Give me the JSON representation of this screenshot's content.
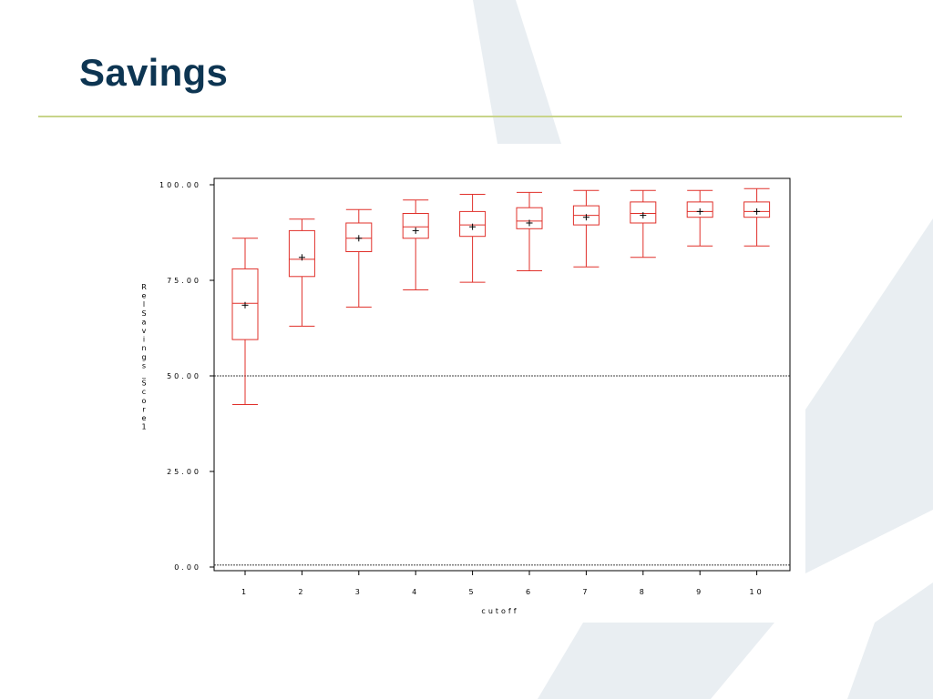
{
  "slide": {
    "title": "Savings"
  },
  "colors": {
    "title": "#0d3552",
    "rule": "#c8d48a",
    "box": "#e0302a",
    "background_shape": "#e9eef2"
  },
  "chart_data": {
    "type": "boxplot",
    "xlabel": "cutoff",
    "ylabel": "RelSavings_Score1",
    "ylim": [
      -0.5,
      102
    ],
    "y_ticks": [
      "0.00",
      "25.00",
      "50.00",
      "75.00",
      "100.00"
    ],
    "y_tick_values": [
      0,
      25,
      50,
      75,
      100
    ],
    "reference_lines": [
      50,
      0.5
    ],
    "categories": [
      "1",
      "2",
      "3",
      "4",
      "5",
      "6",
      "7",
      "8",
      "9",
      "10"
    ],
    "boxes": [
      {
        "cutoff": "1",
        "min": 42.5,
        "q1": 59.5,
        "median": 69.0,
        "q3": 78.0,
        "max": 86.0,
        "mean": 68.5
      },
      {
        "cutoff": "2",
        "min": 63.0,
        "q1": 76.0,
        "median": 80.5,
        "q3": 88.0,
        "max": 91.0,
        "mean": 81.0
      },
      {
        "cutoff": "3",
        "min": 68.0,
        "q1": 82.5,
        "median": 86.0,
        "q3": 90.0,
        "max": 93.5,
        "mean": 86.0
      },
      {
        "cutoff": "4",
        "min": 72.5,
        "q1": 86.0,
        "median": 89.0,
        "q3": 92.5,
        "max": 96.0,
        "mean": 88.0
      },
      {
        "cutoff": "5",
        "min": 74.5,
        "q1": 86.5,
        "median": 89.5,
        "q3": 93.0,
        "max": 97.5,
        "mean": 89.0
      },
      {
        "cutoff": "6",
        "min": 77.5,
        "q1": 88.5,
        "median": 90.5,
        "q3": 94.0,
        "max": 98.0,
        "mean": 90.0
      },
      {
        "cutoff": "7",
        "min": 78.5,
        "q1": 89.5,
        "median": 92.0,
        "q3": 94.5,
        "max": 98.5,
        "mean": 91.5
      },
      {
        "cutoff": "8",
        "min": 81.0,
        "q1": 90.0,
        "median": 92.5,
        "q3": 95.5,
        "max": 98.5,
        "mean": 92.0
      },
      {
        "cutoff": "9",
        "min": 84.0,
        "q1": 91.5,
        "median": 93.0,
        "q3": 95.5,
        "max": 98.5,
        "mean": 93.0
      },
      {
        "cutoff": "10",
        "min": 84.0,
        "q1": 91.5,
        "median": 93.0,
        "q3": 95.5,
        "max": 99.0,
        "mean": 93.0
      }
    ]
  }
}
